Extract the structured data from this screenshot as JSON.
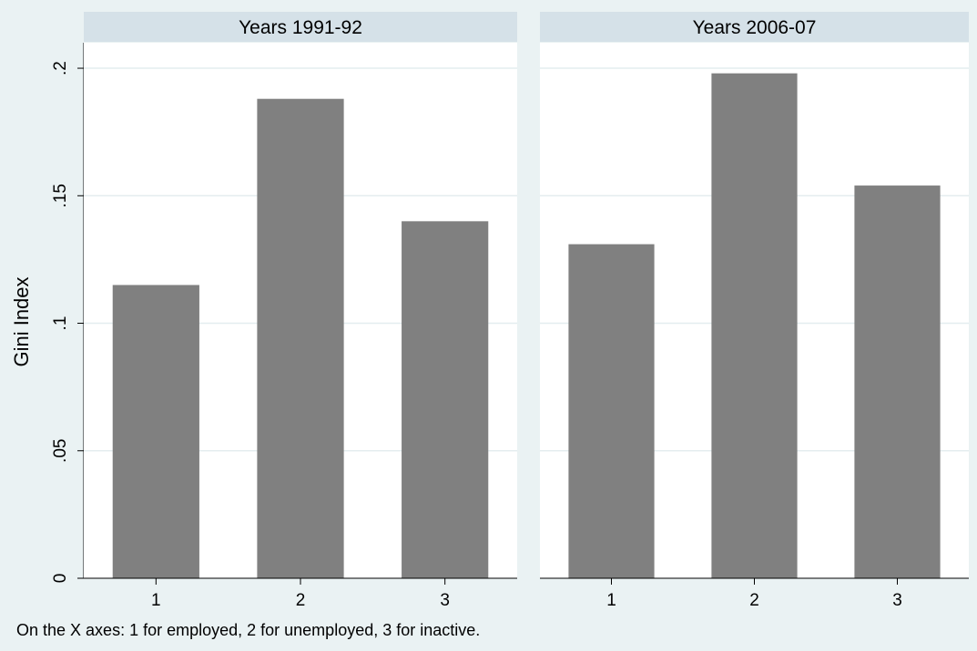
{
  "chart_data": {
    "type": "bar",
    "ylabel": "Gini Index",
    "ylim": [
      0,
      0.21
    ],
    "yticks": [
      0,
      0.05,
      0.1,
      0.15,
      0.2
    ],
    "ytick_labels": [
      "0",
      ".05",
      ".1",
      ".15",
      ".2"
    ],
    "grid": true,
    "categories": [
      "1",
      "2",
      "3"
    ],
    "panels": [
      {
        "title": "Years 1991-92",
        "values": [
          0.115,
          0.188,
          0.14
        ]
      },
      {
        "title": "Years 2006-07",
        "values": [
          0.131,
          0.198,
          0.154
        ]
      }
    ],
    "note": "On the X axes: 1 for employed, 2 for unemployed, 3 for inactive.",
    "colors": {
      "bar": "#808080",
      "strip": "#d5e1e8",
      "plot_bg": "#ffffff",
      "page_bg": "#eaf2f3",
      "grid": "#e4edef"
    }
  }
}
